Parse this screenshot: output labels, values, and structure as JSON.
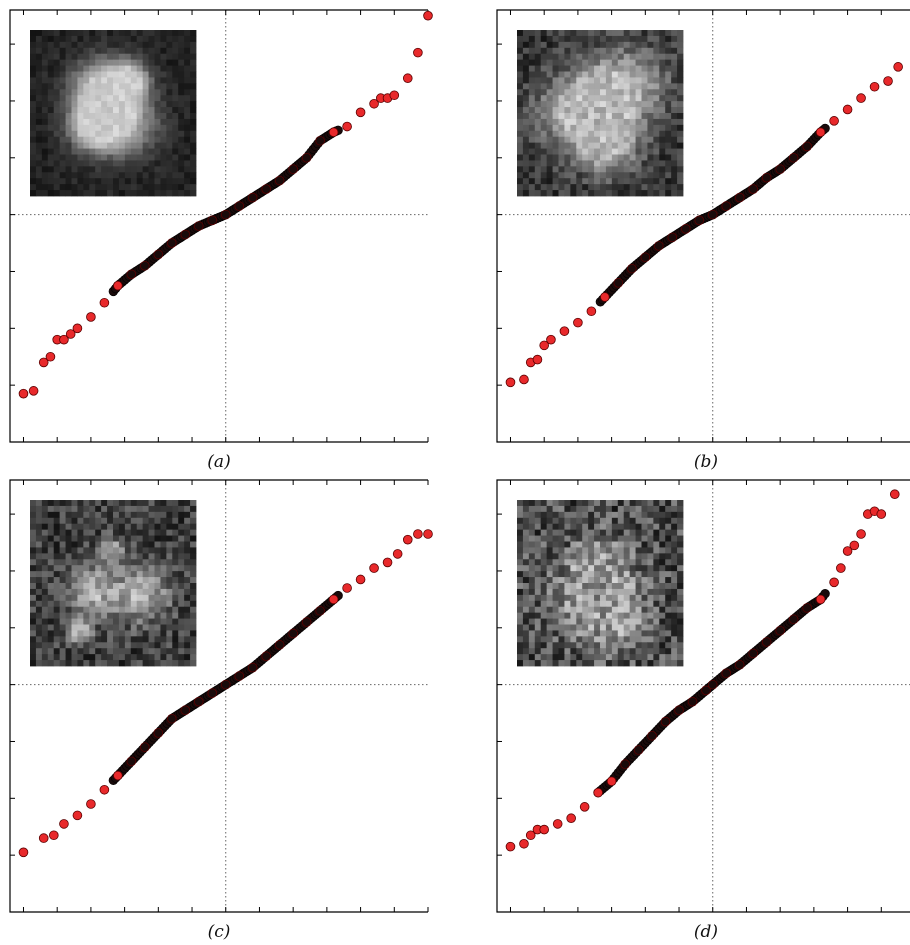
{
  "figure": {
    "style": {
      "marker_fill": "#e8292b",
      "marker_edge": "#5a0000",
      "dense_marker_fill": "#1a0a0a",
      "axes_color": "#000000",
      "guide_color": "#666666",
      "inset_background": "#151515"
    }
  },
  "chart_data": [
    {
      "type": "scatter",
      "panel_label": "(a)",
      "title": "",
      "xlabel": "",
      "ylabel": "",
      "xlim": [
        -3.2,
        3.0
      ],
      "ylim": [
        -4.0,
        3.6
      ],
      "xticks": [
        -3,
        -2.5,
        -2,
        -1.5,
        -1,
        -0.5,
        0,
        0.5,
        1,
        1.5,
        2,
        2.5,
        3
      ],
      "yticks": [
        -3,
        -2,
        -1,
        0,
        1,
        2,
        3
      ],
      "reference_lines": {
        "x": 0,
        "y": 0,
        "style": "dotted"
      },
      "grid": false,
      "legend": "none",
      "inset": {
        "kind": "micrograph",
        "position": "top-left",
        "noise": 0.25,
        "brightness": 0.85
      },
      "points": {
        "x": [
          -3.0,
          -2.85,
          -2.7,
          -2.6,
          -2.5,
          -2.4,
          -2.3,
          -2.2,
          -2.0,
          -1.8,
          -1.6,
          -1.4,
          -1.2,
          -1.0,
          -0.8,
          -0.6,
          -0.4,
          -0.2,
          0.0,
          0.2,
          0.4,
          0.6,
          0.8,
          1.0,
          1.2,
          1.4,
          1.6,
          1.8,
          2.0,
          2.2,
          2.3,
          2.4,
          2.5,
          2.7,
          2.85,
          3.0
        ],
        "y": [
          -3.15,
          -3.1,
          -2.6,
          -2.5,
          -2.2,
          -2.2,
          -2.1,
          -2.0,
          -1.8,
          -1.55,
          -1.25,
          -1.05,
          -0.9,
          -0.7,
          -0.5,
          -0.35,
          -0.2,
          -0.1,
          0.0,
          0.15,
          0.3,
          0.45,
          0.6,
          0.8,
          1.0,
          1.3,
          1.45,
          1.55,
          1.8,
          1.95,
          2.05,
          2.05,
          2.1,
          2.4,
          2.85,
          3.5
        ]
      }
    },
    {
      "type": "scatter",
      "panel_label": "(b)",
      "title": "",
      "xlabel": "",
      "ylabel": "",
      "xlim": [
        -3.2,
        3.0
      ],
      "ylim": [
        -4.0,
        3.6
      ],
      "xticks": [
        -3,
        -2.5,
        -2,
        -1.5,
        -1,
        -0.5,
        0,
        0.5,
        1,
        1.5,
        2,
        2.5,
        3
      ],
      "yticks": [
        -3,
        -2,
        -1,
        0,
        1,
        2,
        3
      ],
      "reference_lines": {
        "x": 0,
        "y": 0,
        "style": "dotted"
      },
      "grid": false,
      "legend": "none",
      "inset": {
        "kind": "micrograph",
        "position": "top-left",
        "noise": 0.55,
        "brightness": 0.8
      },
      "points": {
        "x": [
          -3.0,
          -2.8,
          -2.7,
          -2.6,
          -2.5,
          -2.4,
          -2.2,
          -2.0,
          -1.8,
          -1.6,
          -1.4,
          -1.2,
          -1.0,
          -0.8,
          -0.6,
          -0.4,
          -0.2,
          0.0,
          0.2,
          0.4,
          0.6,
          0.8,
          1.0,
          1.2,
          1.4,
          1.6,
          1.8,
          2.0,
          2.2,
          2.4,
          2.6,
          2.75,
          3.0
        ],
        "y": [
          -2.95,
          -2.9,
          -2.6,
          -2.55,
          -2.3,
          -2.2,
          -2.05,
          -1.9,
          -1.7,
          -1.45,
          -1.2,
          -0.95,
          -0.75,
          -0.55,
          -0.4,
          -0.25,
          -0.1,
          0.0,
          0.15,
          0.3,
          0.45,
          0.65,
          0.8,
          1.0,
          1.2,
          1.45,
          1.65,
          1.85,
          2.05,
          2.25,
          2.35,
          2.6,
          2.95
        ]
      }
    },
    {
      "type": "scatter",
      "panel_label": "(c)",
      "title": "",
      "xlabel": "",
      "ylabel": "",
      "xlim": [
        -3.2,
        3.0
      ],
      "ylim": [
        -4.0,
        3.6
      ],
      "xticks": [
        -3,
        -2.5,
        -2,
        -1.5,
        -1,
        -0.5,
        0,
        0.5,
        1,
        1.5,
        2,
        2.5,
        3
      ],
      "yticks": [
        -3,
        -2,
        -1,
        0,
        1,
        2,
        3
      ],
      "reference_lines": {
        "x": 0,
        "y": 0,
        "style": "dotted"
      },
      "grid": false,
      "legend": "none",
      "inset": {
        "kind": "micrograph",
        "position": "top-left",
        "noise": 0.7,
        "brightness": 0.75
      },
      "points": {
        "x": [
          -3.0,
          -2.7,
          -2.55,
          -2.4,
          -2.2,
          -2.0,
          -1.8,
          -1.6,
          -1.4,
          -1.2,
          -1.0,
          -0.8,
          -0.6,
          -0.4,
          -0.2,
          0.0,
          0.2,
          0.4,
          0.6,
          0.8,
          1.0,
          1.2,
          1.4,
          1.6,
          1.8,
          2.0,
          2.2,
          2.4,
          2.55,
          2.7,
          2.85,
          3.0
        ],
        "y": [
          -2.95,
          -2.7,
          -2.65,
          -2.45,
          -2.3,
          -2.1,
          -1.85,
          -1.6,
          -1.35,
          -1.1,
          -0.85,
          -0.6,
          -0.45,
          -0.3,
          -0.15,
          0.0,
          0.15,
          0.3,
          0.5,
          0.7,
          0.9,
          1.1,
          1.3,
          1.5,
          1.7,
          1.85,
          2.05,
          2.15,
          2.3,
          2.55,
          2.65,
          2.65
        ]
      }
    },
    {
      "type": "scatter",
      "panel_label": "(d)",
      "title": "",
      "xlabel": "",
      "ylabel": "",
      "xlim": [
        -3.2,
        3.0
      ],
      "ylim": [
        -4.0,
        3.6
      ],
      "xticks": [
        -3,
        -2.5,
        -2,
        -1.5,
        -1,
        -0.5,
        0,
        0.5,
        1,
        1.5,
        2,
        2.5,
        3
      ],
      "yticks": [
        -3,
        -2,
        -1,
        0,
        1,
        2,
        3
      ],
      "reference_lines": {
        "x": 0,
        "y": 0,
        "style": "dotted"
      },
      "grid": false,
      "legend": "none",
      "inset": {
        "kind": "micrograph",
        "position": "top-left",
        "noise": 0.95,
        "brightness": 0.65
      },
      "points": {
        "x": [
          -3.0,
          -2.8,
          -2.7,
          -2.6,
          -2.5,
          -2.3,
          -2.1,
          -1.9,
          -1.7,
          -1.5,
          -1.3,
          -1.1,
          -0.9,
          -0.7,
          -0.5,
          -0.3,
          -0.1,
          0.0,
          0.2,
          0.4,
          0.6,
          0.8,
          1.0,
          1.2,
          1.4,
          1.6,
          1.8,
          1.9,
          2.0,
          2.1,
          2.2,
          2.3,
          2.4,
          2.5,
          2.7,
          3.0
        ],
        "y": [
          -2.85,
          -2.8,
          -2.65,
          -2.55,
          -2.55,
          -2.45,
          -2.35,
          -2.15,
          -1.9,
          -1.7,
          -1.4,
          -1.15,
          -0.9,
          -0.65,
          -0.45,
          -0.3,
          -0.1,
          0.0,
          0.2,
          0.35,
          0.55,
          0.75,
          0.95,
          1.15,
          1.35,
          1.5,
          1.8,
          2.05,
          2.35,
          2.45,
          2.65,
          3.0,
          3.05,
          3.0,
          3.35,
          3.65
        ]
      }
    }
  ]
}
